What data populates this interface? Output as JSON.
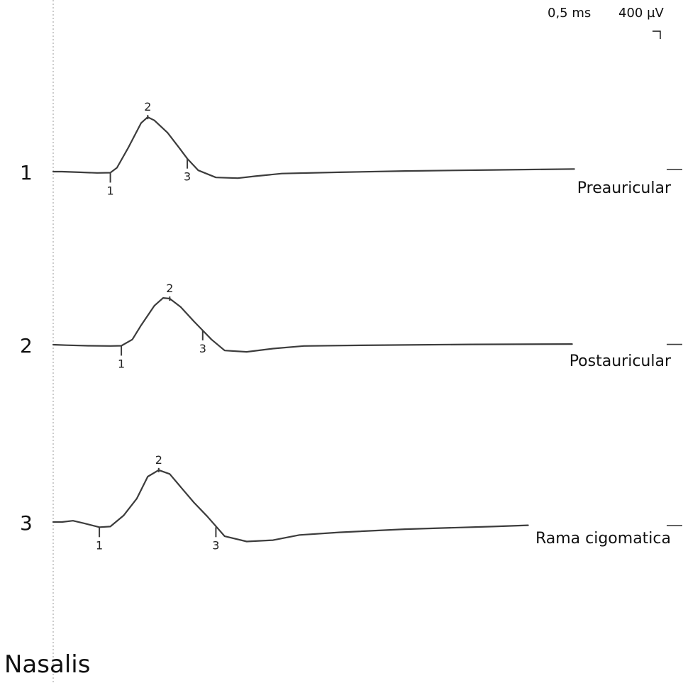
{
  "scale": {
    "time_label": "0,5 ms",
    "amplitude_label": "400 µV"
  },
  "muscle": "Nasalis",
  "chart_data": {
    "type": "line",
    "x_unit": "ms",
    "y_unit": "µV",
    "time_per_division_ms": 0.5,
    "amplitude_per_division_uV": 400,
    "traces": [
      {
        "number": "1",
        "name": "Preauricular",
        "points": [
          [
            0.0,
            0
          ],
          [
            0.2,
            0
          ],
          [
            0.6,
            -5
          ],
          [
            1.0,
            -10
          ],
          [
            1.3,
            -8
          ],
          [
            1.45,
            30
          ],
          [
            1.7,
            180
          ],
          [
            2.0,
            375
          ],
          [
            2.15,
            420
          ],
          [
            2.3,
            395
          ],
          [
            2.6,
            300
          ],
          [
            2.85,
            190
          ],
          [
            3.05,
            100
          ],
          [
            3.3,
            10
          ],
          [
            3.7,
            -45
          ],
          [
            4.2,
            -50
          ],
          [
            4.6,
            -35
          ],
          [
            5.2,
            -15
          ],
          [
            6.5,
            -5
          ],
          [
            8.0,
            5
          ],
          [
            10.0,
            13
          ],
          [
            11.85,
            20
          ]
        ],
        "markers": [
          {
            "label": "1",
            "t": 1.3,
            "v": -8,
            "pos": "below"
          },
          {
            "label": "2",
            "t": 2.15,
            "v": 420,
            "pos": "above"
          },
          {
            "label": "3",
            "t": 3.05,
            "v": 100,
            "pos": "below"
          }
        ]
      },
      {
        "number": "2",
        "name": "Postauricular",
        "points": [
          [
            0.0,
            0
          ],
          [
            0.3,
            -4
          ],
          [
            0.8,
            -8
          ],
          [
            1.3,
            -10
          ],
          [
            1.55,
            -8
          ],
          [
            1.8,
            40
          ],
          [
            2.0,
            150
          ],
          [
            2.3,
            300
          ],
          [
            2.5,
            360
          ],
          [
            2.65,
            355
          ],
          [
            2.9,
            290
          ],
          [
            3.2,
            180
          ],
          [
            3.4,
            110
          ],
          [
            3.6,
            40
          ],
          [
            3.9,
            -45
          ],
          [
            4.4,
            -55
          ],
          [
            5.0,
            -30
          ],
          [
            5.7,
            -10
          ],
          [
            7.0,
            -5
          ],
          [
            9.5,
            2
          ],
          [
            11.8,
            5
          ]
        ],
        "markers": [
          {
            "label": "1",
            "t": 1.55,
            "v": -8,
            "pos": "below"
          },
          {
            "label": "2",
            "t": 2.65,
            "v": 355,
            "pos": "above"
          },
          {
            "label": "3",
            "t": 3.4,
            "v": 110,
            "pos": "below"
          }
        ]
      },
      {
        "number": "3",
        "name": "Rama cigomatica",
        "points": [
          [
            0.0,
            0
          ],
          [
            0.2,
            0
          ],
          [
            0.45,
            10
          ],
          [
            0.7,
            -10
          ],
          [
            1.05,
            -40
          ],
          [
            1.3,
            -35
          ],
          [
            1.6,
            50
          ],
          [
            1.9,
            180
          ],
          [
            2.15,
            350
          ],
          [
            2.4,
            400
          ],
          [
            2.65,
            370
          ],
          [
            2.95,
            250
          ],
          [
            3.2,
            150
          ],
          [
            3.5,
            45
          ],
          [
            3.9,
            -110
          ],
          [
            4.4,
            -150
          ],
          [
            5.0,
            -140
          ],
          [
            5.6,
            -100
          ],
          [
            6.5,
            -80
          ],
          [
            8.0,
            -55
          ],
          [
            10.0,
            -35
          ],
          [
            10.8,
            -25
          ]
        ],
        "markers": [
          {
            "label": "1",
            "t": 1.05,
            "v": -40,
            "pos": "below"
          },
          {
            "label": "2",
            "t": 2.4,
            "v": 400,
            "pos": "above"
          },
          {
            "label": "3",
            "t": 3.7,
            "v": -40,
            "pos": "below"
          }
        ]
      }
    ]
  }
}
